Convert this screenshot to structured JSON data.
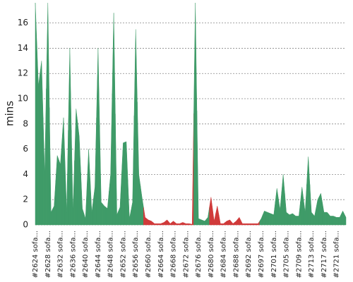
{
  "chart_data": {
    "type": "area",
    "y_label": "mins",
    "ylim": [
      0,
      17.6
    ],
    "yticks": [
      0,
      2,
      4,
      6,
      8,
      10,
      12,
      14,
      16
    ],
    "grid": true,
    "categories": [
      "#2624 sofa...",
      null,
      null,
      null,
      "#2628 sofa...",
      null,
      null,
      null,
      "#2632 sofa...",
      null,
      null,
      null,
      "#2636 sofa...",
      null,
      null,
      null,
      "#2640 sofa...",
      null,
      null,
      null,
      "#2644 sofa...",
      null,
      null,
      null,
      "#2648 sofa...",
      null,
      null,
      null,
      "#2652 sofa...",
      null,
      null,
      null,
      "#2656 sofa...",
      null,
      null,
      null,
      "#2660 sofa...",
      null,
      null,
      null,
      "#2664 sofa...",
      null,
      null,
      null,
      "#2668 sofa...",
      null,
      null,
      null,
      "#2672 sofa...",
      null,
      null,
      null,
      "#2676 sofa...",
      null,
      null,
      null,
      "#2680 sofa...",
      null,
      null,
      null,
      "#2684 sofa...",
      null,
      null,
      null,
      "#2688 sofa...",
      null,
      null,
      null,
      "#2692 sofa...",
      null,
      null,
      null,
      "#2697 sofa...",
      null,
      null,
      null,
      "#2701 sofa...",
      null,
      null,
      null,
      "#2705 sofa...",
      null,
      null,
      null,
      "#2709 sofa...",
      null,
      null,
      null,
      "#2713 sofa...",
      null,
      null,
      null,
      "#2717 sofa...",
      null,
      null,
      null,
      "#2721 sofa...",
      null,
      null,
      null
    ],
    "values": [
      17.6,
      11,
      13,
      4,
      17.6,
      1,
      1.5,
      5.5,
      4.8,
      8.5,
      1,
      14,
      1,
      9.2,
      7,
      1.3,
      0.5,
      6,
      1,
      3,
      14,
      1.8,
      1.5,
      1.3,
      4,
      16.8,
      0.8,
      1.4,
      6.5,
      6.6,
      0.5,
      1.8,
      15.5,
      4,
      2.2,
      0.6,
      0.4,
      0.3,
      0.1,
      0.1,
      0.1,
      0.2,
      0.4,
      0.1,
      0.3,
      0.1,
      0.1,
      0.2,
      0.1,
      0.1,
      0.05,
      17.6,
      0.5,
      0.4,
      0.3,
      0.6,
      2.2,
      0.3,
      1.5,
      0.1,
      0.1,
      0.3,
      0.4,
      0.1,
      0.3,
      0.6,
      0.1,
      0.1,
      0.1,
      0.1,
      0.1,
      0.1,
      0.5,
      1.1,
      1.0,
      0.9,
      0.8,
      2.9,
      1.2,
      4.0,
      1.0,
      0.8,
      0.9,
      0.7,
      0.7,
      3.0,
      1.0,
      5.4,
      1.0,
      0.7,
      2.0,
      2.5,
      1.0,
      1.0,
      0.7,
      0.7,
      0.6,
      0.6,
      1.1,
      0.6
    ],
    "colors": [
      "#3f9b68",
      "#3f9b68",
      "#3f9b68",
      "#3f9b68",
      "#3f9b68",
      "#3f9b68",
      "#3f9b68",
      "#3f9b68",
      "#3f9b68",
      "#3f9b68",
      "#3f9b68",
      "#3f9b68",
      "#3f9b68",
      "#3f9b68",
      "#3f9b68",
      "#3f9b68",
      "#3f9b68",
      "#3f9b68",
      "#3f9b68",
      "#3f9b68",
      "#3f9b68",
      "#3f9b68",
      "#3f9b68",
      "#3f9b68",
      "#3f9b68",
      "#3f9b68",
      "#3f9b68",
      "#3f9b68",
      "#3f9b68",
      "#3f9b68",
      "#3f9b68",
      "#3f9b68",
      "#3f9b68",
      "#3f9b68",
      "#3f9b68",
      "#d03a3a",
      "#d03a3a",
      "#d03a3a",
      "#d03a3a",
      "#d03a3a",
      "#d03a3a",
      "#d03a3a",
      "#d03a3a",
      "#d03a3a",
      "#d03a3a",
      "#d03a3a",
      "#d03a3a",
      "#d03a3a",
      "#d03a3a",
      "#d03a3a",
      "#d03a3a",
      "#3f9b68",
      "#3f9b68",
      "#3f9b68",
      "#3f9b68",
      "#3f9b68",
      "#d03a3a",
      "#d03a3a",
      "#d03a3a",
      "#d03a3a",
      "#d03a3a",
      "#d03a3a",
      "#d03a3a",
      "#d03a3a",
      "#d03a3a",
      "#d03a3a",
      "#d03a3a",
      "#d03a3a",
      "#d03a3a",
      "#d03a3a",
      "#d03a3a",
      "#d03a3a",
      "#3f9b68",
      "#3f9b68",
      "#3f9b68",
      "#3f9b68",
      "#3f9b68",
      "#3f9b68",
      "#3f9b68",
      "#3f9b68",
      "#3f9b68",
      "#3f9b68",
      "#3f9b68",
      "#3f9b68",
      "#3f9b68",
      "#3f9b68",
      "#3f9b68",
      "#3f9b68",
      "#3f9b68",
      "#3f9b68",
      "#3f9b68",
      "#3f9b68",
      "#3f9b68",
      "#3f9b68",
      "#3f9b68",
      "#3f9b68",
      "#3f9b68",
      "#3f9b68",
      "#3f9b68",
      "#3f9b68"
    ]
  }
}
